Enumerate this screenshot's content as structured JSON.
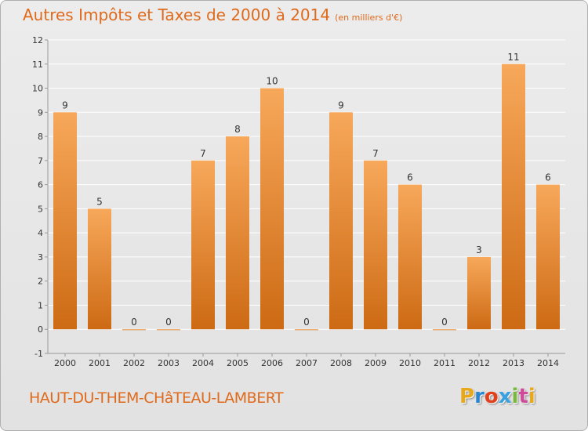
{
  "header": {
    "title": "Autres Impôts et Taxes de 2000 à 2014",
    "subtitle": "(en milliers d'€)"
  },
  "footer": {
    "commune": "HAUT-DU-THEM-CHâTEAU-LAMBERT",
    "logo": {
      "p": "P",
      "r": "r",
      "o": "o",
      "x": "x",
      "i": "i",
      "t": "t",
      "i2": "i"
    }
  },
  "colors": {
    "accent": "#e06a1c",
    "bar_light": "#f7a85a",
    "bar_dark": "#cd6a14",
    "grid": "#ffffff",
    "axis_text": "#333333"
  },
  "chart_data": {
    "type": "bar",
    "categories": [
      "2000",
      "2001",
      "2002",
      "2003",
      "2004",
      "2005",
      "2006",
      "2007",
      "2008",
      "2009",
      "2010",
      "2011",
      "2012",
      "2013",
      "2014"
    ],
    "values": [
      9,
      5,
      0,
      0,
      7,
      8,
      10,
      0,
      9,
      7,
      6,
      0,
      3,
      11,
      6
    ],
    "data_labels": [
      "9",
      "5",
      "0",
      "0",
      "7",
      "8",
      "10",
      "0",
      "9",
      "7",
      "6",
      "0",
      "3",
      "11",
      "6"
    ],
    "yticks": [
      "-1",
      "0",
      "1",
      "2",
      "3",
      "4",
      "5",
      "6",
      "7",
      "8",
      "9",
      "10",
      "11",
      "12"
    ],
    "ylim": [
      -1,
      12
    ],
    "grid": true
  }
}
